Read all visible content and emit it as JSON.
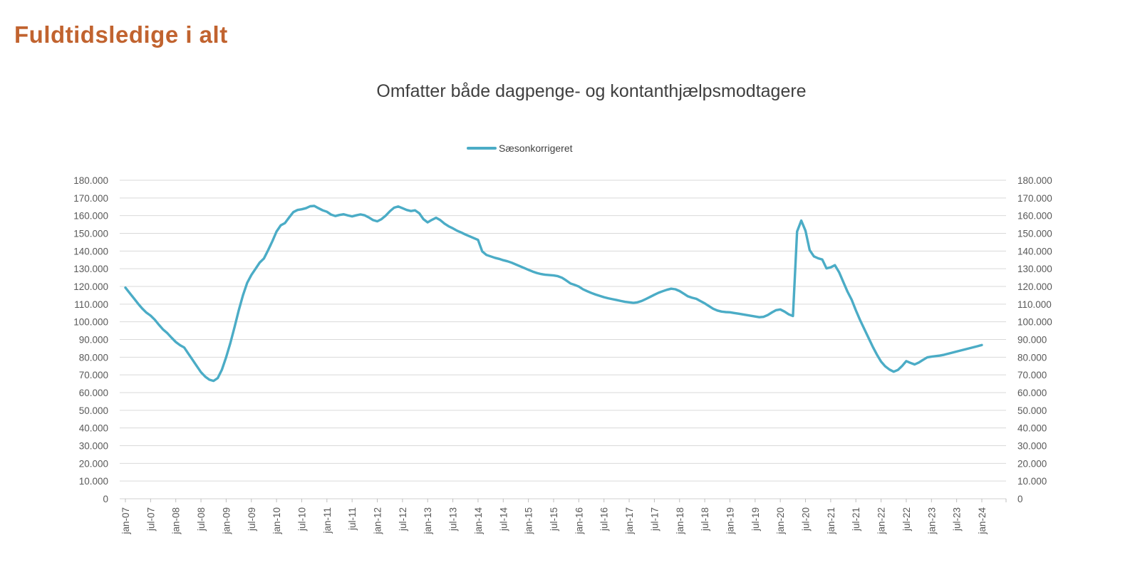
{
  "header": {
    "title": "Fuldtidsledige i alt",
    "title_color": "#c1632f"
  },
  "chart": {
    "subtitle": "Omfatter både dagpenge- og kontanthjælpsmodtagere",
    "legend": {
      "label": "Sæsonkorrigeret",
      "line_color": "#4bacc6"
    }
  },
  "chart_data": {
    "type": "line",
    "title": "Omfatter både dagpenge- og kontanthjælpsmodtagere",
    "legend_entries": [
      "Sæsonkorrigeret"
    ],
    "legend_position": "top",
    "grid": "horizontal",
    "gridline_color": "#d9d9d9",
    "axis_label_color": "#595959",
    "x_unit": "month",
    "x_start": "jan-07",
    "x_end": "jan-24",
    "x_tick_interval_months": 6,
    "x_tick_labels": [
      "jan-07",
      "jul-07",
      "jan-08",
      "jul-08",
      "jan-09",
      "jul-09",
      "jan-10",
      "jul-10",
      "jan-11",
      "jul-11",
      "jan-12",
      "jul-12",
      "jan-13",
      "jul-13",
      "jan-14",
      "jul-14",
      "jan-15",
      "jul-15",
      "jan-16",
      "jul-16",
      "jan-17",
      "jul-17",
      "jan-18",
      "jul-18",
      "jan-19",
      "jul-19",
      "jan-20",
      "jul-20",
      "jan-21",
      "jul-21",
      "jan-22",
      "jul-22",
      "jan-23",
      "jul-23",
      "jan-24"
    ],
    "ylim": [
      0,
      180000
    ],
    "y_tick_step": 10000,
    "y_tick_labels": [
      "0",
      "10.000",
      "20.000",
      "30.000",
      "40.000",
      "50.000",
      "60.000",
      "70.000",
      "80.000",
      "90.000",
      "100.000",
      "110.000",
      "120.000",
      "130.000",
      "140.000",
      "150.000",
      "160.000",
      "170.000",
      "180.000"
    ],
    "y_axis_sides": "both",
    "series": [
      {
        "name": "Sæsonkorrigeret",
        "color": "#4bacc6",
        "values": [
          119300,
          116300,
          113300,
          110300,
          107500,
          105200,
          103500,
          101200,
          98300,
          95600,
          93600,
          91000,
          88600,
          86800,
          85500,
          82000,
          78500,
          75000,
          71500,
          69000,
          67300,
          66600,
          68200,
          73000,
          80000,
          88000,
          97000,
          106500,
          115000,
          122000,
          126500,
          130000,
          133500,
          135800,
          140500,
          145500,
          151000,
          154500,
          155800,
          159000,
          162000,
          163200,
          163600,
          164200,
          165300,
          165500,
          164200,
          163000,
          162200,
          160600,
          159800,
          160400,
          160800,
          160100,
          159600,
          160200,
          160700,
          160200,
          159000,
          157500,
          156800,
          158000,
          160000,
          162500,
          164500,
          165200,
          164200,
          163200,
          162600,
          163000,
          161300,
          158000,
          156200,
          157600,
          158800,
          157500,
          155500,
          154000,
          152800,
          151500,
          150500,
          149300,
          148300,
          147300,
          146300,
          139800,
          137800,
          137000,
          136200,
          135600,
          134800,
          134200,
          133400,
          132400,
          131400,
          130400,
          129400,
          128400,
          127600,
          127000,
          126600,
          126400,
          126200,
          125800,
          124900,
          123400,
          121700,
          120900,
          119900,
          118400,
          117300,
          116300,
          115400,
          114700,
          113900,
          113300,
          112800,
          112300,
          111800,
          111300,
          111000,
          110700,
          111000,
          111800,
          112900,
          114100,
          115300,
          116400,
          117300,
          118100,
          118700,
          118400,
          117400,
          115900,
          114400,
          113600,
          113000,
          111700,
          110400,
          108900,
          107400,
          106400,
          105800,
          105500,
          105400,
          105000,
          104600,
          104200,
          103800,
          103400,
          103000,
          102600,
          102800,
          103800,
          105300,
          106600,
          107000,
          105800,
          104200,
          103300,
          151000,
          157200,
          151500,
          140500,
          137000,
          135900,
          135200,
          130200,
          130800,
          132000,
          128000,
          122500,
          117000,
          112500,
          106500,
          101000,
          96000,
          91000,
          86000,
          81500,
          77500,
          74800,
          73000,
          71800,
          72800,
          75000,
          77800,
          76800,
          75900,
          77000,
          78500,
          79900,
          80300,
          80600,
          80900,
          81400,
          82000,
          82600,
          83200,
          83800,
          84400,
          85000,
          85600,
          86200,
          86900
        ]
      }
    ]
  }
}
